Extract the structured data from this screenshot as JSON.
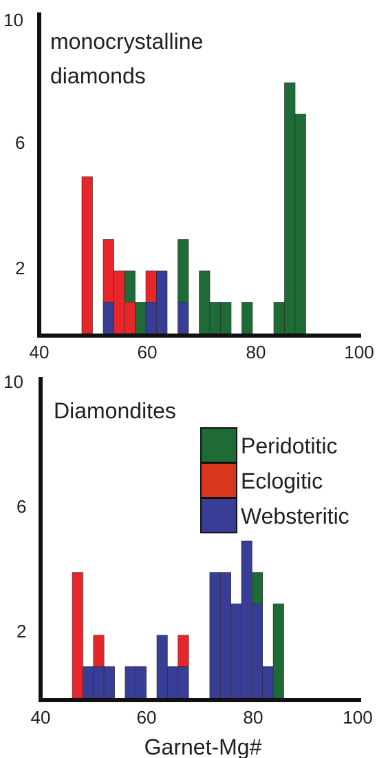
{
  "colors": {
    "Peridotitic": "#1e6b35",
    "Eclogitic": "#e8262a",
    "Websteritic": "#383d96",
    "axis": "#111111",
    "legend_eclogitic_swatch": "#d9381e"
  },
  "legend": [
    "Peridotitic",
    "Eclogitic",
    "Websteritic"
  ],
  "xlabel": "Garnet-Mg#",
  "chart_data": [
    {
      "type": "bar",
      "stacked": true,
      "title": "monocrystalline diamonds",
      "title_lines": [
        "monocrystalline",
        "diamonds"
      ],
      "xlim": [
        40,
        100
      ],
      "ylim": [
        0,
        10
      ],
      "xticks": [
        "40",
        "60",
        "80",
        "100"
      ],
      "yticks": [
        "2",
        "6",
        "10"
      ],
      "bin_width": 2,
      "bins": [
        {
          "x": 50,
          "Eclogitic": 5
        },
        {
          "x": 54,
          "Websteritic": 1,
          "Eclogitic": 2
        },
        {
          "x": 56,
          "Eclogitic": 2
        },
        {
          "x": 58,
          "Eclogitic": 1,
          "Peridotitic": 1
        },
        {
          "x": 60,
          "Peridotitic": 1
        },
        {
          "x": 62,
          "Websteritic": 1,
          "Eclogitic": 1
        },
        {
          "x": 64,
          "Websteritic": 2
        },
        {
          "x": 68,
          "Websteritic": 1,
          "Peridotitic": 2
        },
        {
          "x": 72,
          "Peridotitic": 2
        },
        {
          "x": 74,
          "Peridotitic": 1
        },
        {
          "x": 76,
          "Peridotitic": 1
        },
        {
          "x": 80,
          "Peridotitic": 1
        },
        {
          "x": 86,
          "Peridotitic": 1
        },
        {
          "x": 88,
          "Peridotitic": 8
        },
        {
          "x": 90,
          "Peridotitic": 7
        }
      ]
    },
    {
      "type": "bar",
      "stacked": true,
      "title": "Diamondites",
      "title_lines": [
        "Diamondites"
      ],
      "xlim": [
        40,
        100
      ],
      "ylim": [
        0,
        10
      ],
      "xticks": [
        "40",
        "60",
        "80",
        "100"
      ],
      "yticks": [
        "2",
        "6",
        "10"
      ],
      "bin_width": 2,
      "bins": [
        {
          "x": 48,
          "Eclogitic": 4
        },
        {
          "x": 50,
          "Websteritic": 1
        },
        {
          "x": 52,
          "Websteritic": 1,
          "Eclogitic": 1
        },
        {
          "x": 54,
          "Websteritic": 1
        },
        {
          "x": 58,
          "Websteritic": 1
        },
        {
          "x": 60,
          "Websteritic": 1
        },
        {
          "x": 64,
          "Websteritic": 2
        },
        {
          "x": 66,
          "Websteritic": 1
        },
        {
          "x": 68,
          "Websteritic": 1,
          "Eclogitic": 1
        },
        {
          "x": 74,
          "Websteritic": 4
        },
        {
          "x": 76,
          "Websteritic": 4
        },
        {
          "x": 78,
          "Websteritic": 3
        },
        {
          "x": 80,
          "Websteritic": 5
        },
        {
          "x": 82,
          "Websteritic": 3,
          "Peridotitic": 1
        },
        {
          "x": 84,
          "Websteritic": 1
        },
        {
          "x": 86,
          "Peridotitic": 3
        }
      ]
    }
  ]
}
